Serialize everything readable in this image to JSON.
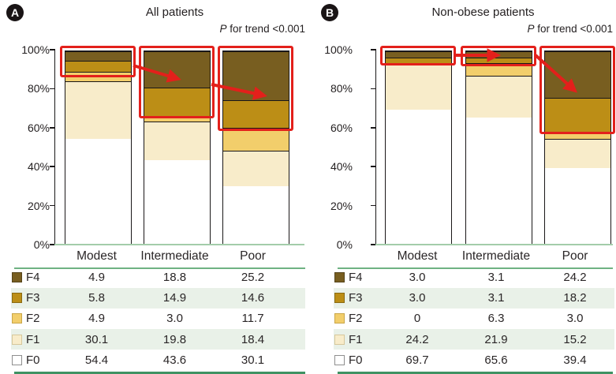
{
  "figure": {
    "panels": [
      {
        "badge": "A",
        "title": "All patients",
        "p_italic": "P",
        "p_rest": " for trend <0.001",
        "y_tick_labels": [
          "100%",
          "80%",
          "60%",
          "40%",
          "20%",
          "0%"
        ],
        "categories": [
          "Modest",
          "Intermediate",
          "Poor"
        ],
        "table_rows": [
          {
            "stage": "F4",
            "values": [
              "4.9",
              "18.8",
              "25.2"
            ]
          },
          {
            "stage": "F3",
            "values": [
              "5.8",
              "14.9",
              "14.6"
            ]
          },
          {
            "stage": "F2",
            "values": [
              "4.9",
              "3.0",
              "11.7"
            ]
          },
          {
            "stage": "F1",
            "values": [
              "30.1",
              "19.8",
              "18.4"
            ]
          },
          {
            "stage": "F0",
            "values": [
              "54.4",
              "43.6",
              "30.1"
            ]
          }
        ]
      },
      {
        "badge": "B",
        "title": "Non-obese patients",
        "p_italic": "P",
        "p_rest": " for trend <0.001",
        "y_tick_labels": [
          "100%",
          "80%",
          "60%",
          "40%",
          "20%",
          "0%"
        ],
        "categories": [
          "Modest",
          "Intermediate",
          "Poor"
        ],
        "table_rows": [
          {
            "stage": "F4",
            "values": [
              "3.0",
              "3.1",
              "24.2"
            ]
          },
          {
            "stage": "F3",
            "values": [
              "3.0",
              "3.1",
              "18.2"
            ]
          },
          {
            "stage": "F2",
            "values": [
              "0",
              "6.3",
              "3.0"
            ]
          },
          {
            "stage": "F1",
            "values": [
              "24.2",
              "21.9",
              "15.2"
            ]
          },
          {
            "stage": "F0",
            "values": [
              "69.7",
              "65.6",
              "39.4"
            ]
          }
        ]
      }
    ]
  },
  "legend_colors": {
    "F4": "#785e20",
    "F3": "#bc8e16",
    "F2": "#f2ce6b",
    "F1": "#f8ecca",
    "F0": "#ffffff"
  },
  "accent_colors": {
    "highlight_red": "#e3201b",
    "table_rule_green": "#3f9263",
    "axis_baseline_green": "#a3cdaa",
    "row_stripe_green": "#e9f1e8"
  },
  "chart_data": [
    {
      "type": "bar",
      "stacked": true,
      "title": "All patients",
      "annotation": "P for trend <0.001",
      "categories": [
        "Modest",
        "Intermediate",
        "Poor"
      ],
      "series": [
        {
          "name": "F4",
          "color": "#785e20",
          "values": [
            4.9,
            18.8,
            25.2
          ]
        },
        {
          "name": "F3",
          "color": "#bc8e16",
          "values": [
            5.8,
            14.9,
            14.6
          ]
        },
        {
          "name": "F2",
          "color": "#f2ce6b",
          "values": [
            4.9,
            3.0,
            11.7
          ]
        },
        {
          "name": "F1",
          "color": "#f8ecca",
          "values": [
            30.1,
            19.8,
            18.4
          ]
        },
        {
          "name": "F0",
          "color": "#ffffff",
          "values": [
            54.4,
            43.6,
            30.1
          ]
        }
      ],
      "stack_order_bottom_to_top": [
        "F0",
        "F1",
        "F2",
        "F3",
        "F4"
      ],
      "ylim": [
        0,
        100
      ],
      "y_tick_labels": [
        "0%",
        "20%",
        "40%",
        "60%",
        "80%",
        "100%"
      ],
      "grid": false,
      "legend_position": "table-below",
      "highlight_boxes": [
        {
          "category": "Modest",
          "segments": [
            "F3",
            "F4"
          ]
        },
        {
          "category": "Intermediate",
          "segments": [
            "F3",
            "F4"
          ]
        },
        {
          "category": "Poor",
          "segments": [
            "F3",
            "F4"
          ]
        }
      ],
      "arrows": [
        {
          "from": "Modest",
          "to": "Intermediate"
        },
        {
          "from": "Intermediate",
          "to": "Poor"
        }
      ]
    },
    {
      "type": "bar",
      "stacked": true,
      "title": "Non-obese patients",
      "annotation": "P for trend <0.001",
      "categories": [
        "Modest",
        "Intermediate",
        "Poor"
      ],
      "series": [
        {
          "name": "F4",
          "color": "#785e20",
          "values": [
            3.0,
            3.1,
            24.2
          ]
        },
        {
          "name": "F3",
          "color": "#bc8e16",
          "values": [
            3.0,
            3.1,
            18.2
          ]
        },
        {
          "name": "F2",
          "color": "#f2ce6b",
          "values": [
            0,
            6.3,
            3.0
          ]
        },
        {
          "name": "F1",
          "color": "#f8ecca",
          "values": [
            24.2,
            21.9,
            15.2
          ]
        },
        {
          "name": "F0",
          "color": "#ffffff",
          "values": [
            69.7,
            65.6,
            39.4
          ]
        }
      ],
      "stack_order_bottom_to_top": [
        "F0",
        "F1",
        "F2",
        "F3",
        "F4"
      ],
      "ylim": [
        0,
        100
      ],
      "y_tick_labels": [
        "0%",
        "20%",
        "40%",
        "60%",
        "80%",
        "100%"
      ],
      "grid": false,
      "legend_position": "table-below",
      "highlight_boxes": [
        {
          "category": "Modest",
          "segments": [
            "F3",
            "F4"
          ]
        },
        {
          "category": "Intermediate",
          "segments": [
            "F2",
            "F3",
            "F4"
          ]
        },
        {
          "category": "Poor",
          "segments": [
            "F3",
            "F4"
          ]
        }
      ],
      "arrows": [
        {
          "from": "Modest",
          "to": "Intermediate"
        },
        {
          "from": "Intermediate",
          "to": "Poor"
        }
      ]
    }
  ]
}
